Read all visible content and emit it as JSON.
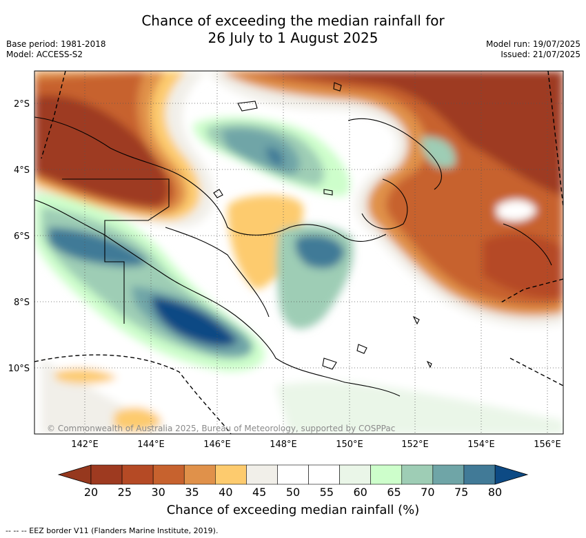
{
  "title_line1": "Chance of exceeding the median rainfall for",
  "title_line2": "26 July to 1 August 2025",
  "meta_left": {
    "line1": "Base period: 1981-2018",
    "line2": "Model: ACCESS-S2"
  },
  "meta_right": {
    "line1": "Model run: 19/07/2025",
    "line2": "Issued: 21/07/2025"
  },
  "copyright": "© Commonwealth of Australia 2025, Bureau of Meteorology, supported by COSPPac",
  "lon_labels": [
    "142°E",
    "144°E",
    "146°E",
    "148°E",
    "150°E",
    "152°E",
    "154°E",
    "156°E"
  ],
  "lat_labels": [
    "2°S",
    "4°S",
    "6°S",
    "8°S",
    "10°S"
  ],
  "colorbar": {
    "title": "Chance of exceeding median rainfall (%)",
    "ticks": [
      "20",
      "25",
      "30",
      "35",
      "40",
      "45",
      "50",
      "55",
      "60",
      "65",
      "70",
      "75",
      "80"
    ],
    "colors": [
      "#9e3a20",
      "#b54a25",
      "#c7622e",
      "#e0914a",
      "#fdcb6e",
      "#f1efe9",
      "#ffffff",
      "#ffffff",
      "#eaf6e8",
      "#cdfecb",
      "#9ecdb5",
      "#6fa5a7",
      "#417a97"
    ],
    "under_color": "#96381e",
    "over_color": "#0d4a84"
  },
  "footer": "-- -- -- EEZ border V11 (Flanders Marine Institute, 2019)."
}
